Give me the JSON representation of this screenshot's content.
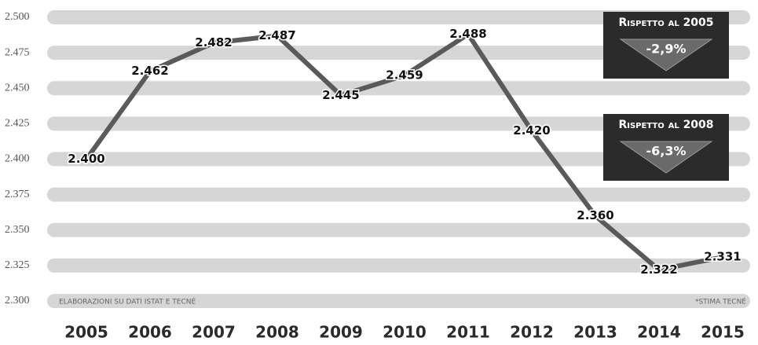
{
  "chart_data": {
    "type": "line",
    "categories": [
      "2005",
      "2006",
      "2007",
      "2008",
      "2009",
      "2010",
      "2011",
      "2012",
      "2013",
      "2014",
      "2015"
    ],
    "values": [
      2400,
      2462,
      2482,
      2487,
      2445,
      2459,
      2488,
      2420,
      2360,
      2322,
      2331
    ],
    "value_labels": [
      "2.400",
      "2.462",
      "2.482",
      "2.487",
      "2.445",
      "2.459",
      "2.488",
      "2.420",
      "2.360",
      "2.322",
      "2.331"
    ],
    "color": "#5a5a5a",
    "ylim": [
      2300,
      2500
    ],
    "yticks": [
      {
        "value": 2300,
        "label": "2.300"
      },
      {
        "value": 2325,
        "label": "2.325"
      },
      {
        "value": 2350,
        "label": "2.350"
      },
      {
        "value": 2375,
        "label": "2.375"
      },
      {
        "value": 2400,
        "label": "2.400"
      },
      {
        "value": 2425,
        "label": "2.425"
      },
      {
        "value": 2450,
        "label": "2.450"
      },
      {
        "value": 2475,
        "label": "2.475"
      },
      {
        "value": 2500,
        "label": "2.500"
      }
    ],
    "grid": true,
    "annotations": [
      {
        "title": "Rispetto al 2005",
        "value": "-2,9%"
      },
      {
        "title": "Rispetto al 2008",
        "value": "-6,3%"
      }
    ],
    "source": "Elaborazioni su dati Istat e Tecné",
    "note": "*Stima Tecné"
  }
}
